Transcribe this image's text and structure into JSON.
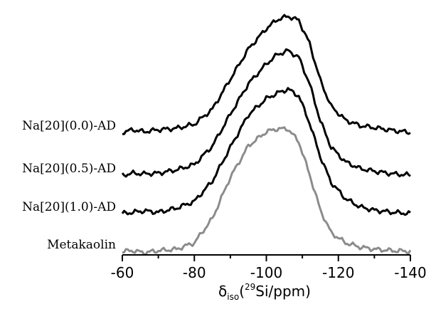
{
  "chart_data": {
    "type": "line",
    "title": "",
    "xlabel_parts": {
      "symbol": "δ",
      "subscript": "iso",
      "open": "(",
      "superscript": "29",
      "rest": "Si/ppm)"
    },
    "ylabel": "",
    "xlim": [
      -60,
      -140
    ],
    "x_reversed": true,
    "x_ticks": [
      -60,
      -80,
      -100,
      -120,
      -140
    ],
    "y_axis_shown": false,
    "grid": false,
    "legend": "none",
    "series": [
      {
        "name": "Na[20](0.0)-AD",
        "color": "#000000",
        "baseline": 0,
        "peak_x": -106,
        "peak_height": 170,
        "points": [
          [
            -60,
            0
          ],
          [
            -63,
            4
          ],
          [
            -66,
            1
          ],
          [
            -70,
            4
          ],
          [
            -75,
            6
          ],
          [
            -80,
            12
          ],
          [
            -85,
            34
          ],
          [
            -90,
            78
          ],
          [
            -95,
            122
          ],
          [
            -100,
            152
          ],
          [
            -103,
            165
          ],
          [
            -106,
            170
          ],
          [
            -109,
            164
          ],
          [
            -112,
            130
          ],
          [
            -115,
            76
          ],
          [
            -118,
            38
          ],
          [
            -122,
            18
          ],
          [
            -126,
            10
          ],
          [
            -130,
            7
          ],
          [
            -135,
            3
          ],
          [
            -140,
            0
          ]
        ]
      },
      {
        "name": "Na[20](0.5)-AD",
        "color": "#000000",
        "baseline": 0,
        "peak_x": -106,
        "peak_height": 188,
        "points": [
          [
            -60,
            0
          ],
          [
            -63,
            3
          ],
          [
            -66,
            2
          ],
          [
            -70,
            3
          ],
          [
            -75,
            8
          ],
          [
            -80,
            16
          ],
          [
            -85,
            44
          ],
          [
            -90,
            92
          ],
          [
            -95,
            138
          ],
          [
            -100,
            168
          ],
          [
            -103,
            182
          ],
          [
            -106,
            188
          ],
          [
            -109,
            178
          ],
          [
            -112,
            138
          ],
          [
            -115,
            82
          ],
          [
            -118,
            42
          ],
          [
            -122,
            20
          ],
          [
            -126,
            10
          ],
          [
            -130,
            6
          ],
          [
            -135,
            2
          ],
          [
            -140,
            0
          ]
        ]
      },
      {
        "name": "Na[20](1.0)-AD",
        "color": "#000000",
        "baseline": 0,
        "peak_x": -106,
        "peak_height": 184,
        "points": [
          [
            -60,
            0
          ],
          [
            -63,
            2
          ],
          [
            -66,
            4
          ],
          [
            -70,
            2
          ],
          [
            -75,
            8
          ],
          [
            -80,
            18
          ],
          [
            -85,
            48
          ],
          [
            -90,
            98
          ],
          [
            -95,
            146
          ],
          [
            -100,
            170
          ],
          [
            -103,
            178
          ],
          [
            -106,
            184
          ],
          [
            -109,
            174
          ],
          [
            -112,
            134
          ],
          [
            -115,
            84
          ],
          [
            -118,
            46
          ],
          [
            -122,
            22
          ],
          [
            -126,
            10
          ],
          [
            -130,
            5
          ],
          [
            -135,
            2
          ],
          [
            -140,
            0
          ]
        ]
      },
      {
        "name": "Metakaolin",
        "color": "#8c8c8c",
        "baseline": 0,
        "peak_x": -104,
        "peak_height": 172,
        "points": [
          [
            -60,
            0
          ],
          [
            -63,
            1
          ],
          [
            -66,
            -2
          ],
          [
            -70,
            1
          ],
          [
            -75,
            3
          ],
          [
            -80,
            12
          ],
          [
            -85,
            46
          ],
          [
            -90,
            104
          ],
          [
            -95,
            148
          ],
          [
            -100,
            168
          ],
          [
            -103,
            172
          ],
          [
            -106,
            172
          ],
          [
            -109,
            154
          ],
          [
            -112,
            108
          ],
          [
            -115,
            58
          ],
          [
            -118,
            26
          ],
          [
            -122,
            12
          ],
          [
            -126,
            6
          ],
          [
            -130,
            3
          ],
          [
            -135,
            1
          ],
          [
            -140,
            0
          ]
        ]
      }
    ]
  }
}
